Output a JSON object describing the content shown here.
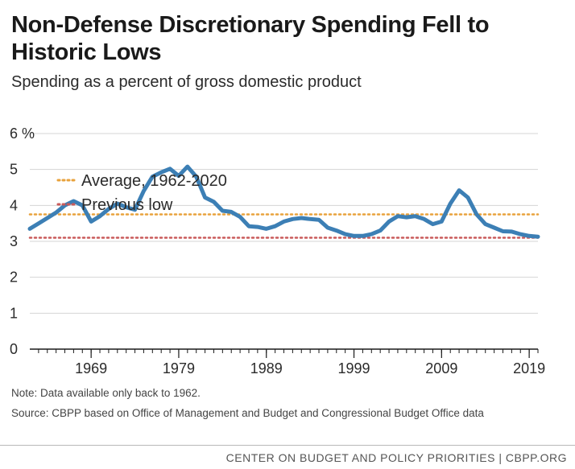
{
  "header": {
    "title": "Non-Defense Discretionary Spending Fell to Historic Lows",
    "subtitle": "Spending as a percent of gross domestic product"
  },
  "chart_data": {
    "type": "line",
    "title": "Non-Defense Discretionary Spending Fell to Historic Lows",
    "subtitle": "Spending as a percent of gross domestic product",
    "xlabel": "",
    "ylabel": "",
    "ylim": [
      0,
      6
    ],
    "xlim": [
      1962,
      2020
    ],
    "y_ticks": [
      "0",
      "1",
      "2",
      "3",
      "4",
      "5",
      "6 %"
    ],
    "x_ticks": [
      "1969",
      "1979",
      "1989",
      "1999",
      "2009",
      "2019"
    ],
    "grid": true,
    "legend_position": "bottom-left",
    "series": [
      {
        "color": "#3c7fb5",
        "x": [
          1962,
          1963,
          1964,
          1965,
          1966,
          1967,
          1968,
          1969,
          1970,
          1971,
          1972,
          1973,
          1974,
          1975,
          1976,
          1977,
          1978,
          1979,
          1980,
          1981,
          1982,
          1983,
          1984,
          1985,
          1986,
          1987,
          1988,
          1989,
          1990,
          1991,
          1992,
          1993,
          1994,
          1995,
          1996,
          1997,
          1998,
          1999,
          2000,
          2001,
          2002,
          2003,
          2004,
          2005,
          2006,
          2007,
          2008,
          2009,
          2010,
          2011,
          2012,
          2013,
          2014,
          2015,
          2016,
          2017,
          2018,
          2019,
          2020
        ],
        "values": [
          3.35,
          3.5,
          3.65,
          3.8,
          4.0,
          4.12,
          4.0,
          3.55,
          3.7,
          3.9,
          4.05,
          3.95,
          3.88,
          4.4,
          4.8,
          4.92,
          5.02,
          4.82,
          5.08,
          4.8,
          4.22,
          4.1,
          3.85,
          3.82,
          3.68,
          3.42,
          3.4,
          3.35,
          3.42,
          3.55,
          3.62,
          3.65,
          3.62,
          3.6,
          3.38,
          3.3,
          3.2,
          3.15,
          3.15,
          3.2,
          3.3,
          3.55,
          3.7,
          3.67,
          3.7,
          3.62,
          3.48,
          3.55,
          4.05,
          4.42,
          4.22,
          3.75,
          3.48,
          3.38,
          3.28,
          3.27,
          3.2,
          3.15,
          3.13
        ]
      },
      {
        "name": "Average, 1962-2020",
        "color": "#e8a23c",
        "style": "dotted",
        "values": [
          3.75
        ]
      },
      {
        "name": "Previous low",
        "color": "#c95a5a",
        "style": "dotted",
        "values": [
          3.1
        ]
      }
    ]
  },
  "notes": {
    "note": "Note: Data available only back to 1962.",
    "source": "Source: CBPP based on Office of Management and Budget and Congressional Budget Office data"
  },
  "footer": {
    "text": "CENTER ON BUDGET AND POLICY PRIORITIES | CBPP.ORG"
  }
}
